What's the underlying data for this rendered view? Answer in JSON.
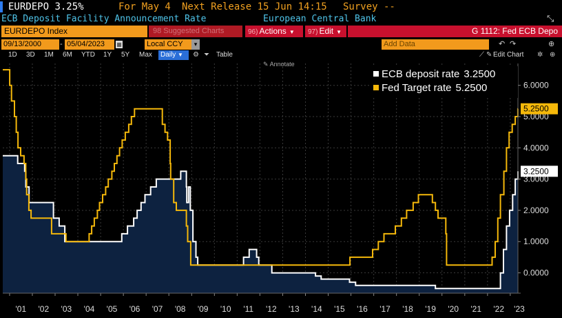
{
  "header": {
    "ticker": "EURDEPO",
    "last_value": "3.25%",
    "for_label": "For May 4",
    "next_release": "Next Release 15 Jun 14:15",
    "survey": "Survey --",
    "title": "ECB Deposit Facility Announcement Rate",
    "source": "European Central Bank"
  },
  "command_bar": {
    "security": "EURDEPO Index",
    "suggested": "98 Suggested Charts",
    "actions_num": "96)",
    "actions_label": "Actions",
    "edit_num": "97)",
    "edit_label": "Edit",
    "chart_name": "G 1112: Fed ECB Depo"
  },
  "range": {
    "start_date": "09/13/2000",
    "end_date": "05/04/2023",
    "currency": "Local CCY",
    "add_data_placeholder": "Add Data"
  },
  "toolbar": {
    "periods": [
      "1D",
      "3D",
      "1M",
      "6M",
      "YTD",
      "1Y",
      "5Y",
      "Max"
    ],
    "frequency": "Daily",
    "table_label": "Table",
    "edit_chart_label": "Edit Chart",
    "annotate_label": "Annotate"
  },
  "colors": {
    "accent_orange": "#f29a1c",
    "command_red": "#c8102e",
    "ecb_line": "#ffffff",
    "fed_line": "#f5b80a",
    "area_fill": "#0d2240",
    "title_blue": "#4fc3e8"
  },
  "icons": [
    "calendar-icon",
    "undo-icon",
    "redo-icon",
    "expand-icon",
    "settings-icon",
    "pin-icon",
    "zoom-icon"
  ],
  "chart_data": {
    "type": "line",
    "x_tick_labels": [
      "'01",
      "'02",
      "'03",
      "'04",
      "'05",
      "'06",
      "'07",
      "'08",
      "'09",
      "'10",
      "'11",
      "'12",
      "'13",
      "'14",
      "'15",
      "'16",
      "'17",
      "'18",
      "'19",
      "'20",
      "'21",
      "'22",
      "'23"
    ],
    "y_tick_labels": [
      "0.0000",
      "1.0000",
      "2.0000",
      "3.0000",
      "4.0000",
      "5.0000",
      "6.0000"
    ],
    "ylim": [
      -0.65,
      6.7
    ],
    "xlim": [
      "2000-09-13",
      "2023-05-04"
    ],
    "grid": true,
    "legend_position": "top-right",
    "last_labels": [
      "5.2500",
      "3.2500"
    ],
    "series": [
      {
        "name": "ECB deposit rate",
        "last_value": "3.2500",
        "color": "#ffffff",
        "area": true,
        "x": [
          "2000-09-13",
          "2001-05-11",
          "2001-08-31",
          "2001-09-18",
          "2001-11-09",
          "2002-12-06",
          "2003-03-07",
          "2003-06-06",
          "2005-12-06",
          "2006-03-08",
          "2006-06-15",
          "2006-08-09",
          "2006-10-11",
          "2006-12-13",
          "2007-03-14",
          "2007-06-13",
          "2008-07-09",
          "2008-10-08",
          "2008-10-15",
          "2008-11-12",
          "2008-12-10",
          "2009-01-21",
          "2009-03-11",
          "2009-04-08",
          "2011-04-13",
          "2011-07-13",
          "2011-11-09",
          "2011-12-14",
          "2012-07-11",
          "2014-06-11",
          "2014-09-10",
          "2015-12-09",
          "2016-03-16",
          "2019-09-18",
          "2022-07-27",
          "2022-09-14",
          "2022-11-02",
          "2022-12-21",
          "2023-02-08",
          "2023-03-22",
          "2023-05-04"
        ],
        "y": [
          3.75,
          3.5,
          3.25,
          2.75,
          2.25,
          1.75,
          1.5,
          1.0,
          1.25,
          1.5,
          1.75,
          2.0,
          2.25,
          2.5,
          2.75,
          3.0,
          3.25,
          2.75,
          2.25,
          2.75,
          2.0,
          1.0,
          0.5,
          0.25,
          0.5,
          0.75,
          0.5,
          0.25,
          0.0,
          -0.1,
          -0.2,
          -0.3,
          -0.4,
          -0.5,
          0.0,
          0.75,
          1.5,
          2.0,
          2.5,
          3.0,
          3.25
        ]
      },
      {
        "name": "Fed Target rate",
        "last_value": "5.2500",
        "color": "#f5b80a",
        "area": false,
        "x": [
          "2000-09-13",
          "2001-01-03",
          "2001-01-31",
          "2001-03-20",
          "2001-04-18",
          "2001-05-15",
          "2001-06-27",
          "2001-08-21",
          "2001-09-17",
          "2001-10-02",
          "2001-11-06",
          "2001-12-11",
          "2002-11-06",
          "2003-06-25",
          "2004-06-30",
          "2004-08-10",
          "2004-09-21",
          "2004-11-10",
          "2004-12-14",
          "2005-02-02",
          "2005-03-22",
          "2005-05-03",
          "2005-06-30",
          "2005-08-09",
          "2005-09-20",
          "2005-11-01",
          "2005-12-13",
          "2006-01-31",
          "2006-03-28",
          "2006-05-10",
          "2006-06-29",
          "2007-09-18",
          "2007-10-31",
          "2007-12-11",
          "2008-01-22",
          "2008-01-30",
          "2008-03-18",
          "2008-04-30",
          "2008-10-08",
          "2008-10-29",
          "2008-12-16",
          "2015-12-16",
          "2016-12-14",
          "2017-03-15",
          "2017-06-14",
          "2017-12-13",
          "2018-03-21",
          "2018-06-13",
          "2018-09-26",
          "2018-12-19",
          "2019-07-31",
          "2019-09-18",
          "2019-10-30",
          "2020-03-03",
          "2020-03-15",
          "2022-03-16",
          "2022-05-04",
          "2022-06-15",
          "2022-07-27",
          "2022-09-21",
          "2022-11-02",
          "2022-12-14",
          "2023-02-01",
          "2023-03-22",
          "2023-05-03",
          "2023-05-04"
        ],
        "y": [
          6.5,
          6.0,
          5.5,
          5.0,
          4.5,
          4.0,
          3.75,
          3.5,
          3.0,
          2.5,
          2.0,
          1.75,
          1.25,
          1.0,
          1.25,
          1.5,
          1.75,
          2.0,
          2.25,
          2.5,
          2.75,
          3.0,
          3.25,
          3.5,
          3.75,
          4.0,
          4.25,
          4.5,
          4.75,
          5.0,
          5.25,
          4.75,
          4.5,
          4.25,
          3.5,
          3.0,
          2.25,
          2.0,
          1.5,
          1.0,
          0.25,
          0.5,
          0.75,
          1.0,
          1.25,
          1.5,
          1.75,
          2.0,
          2.25,
          2.5,
          2.25,
          2.0,
          1.75,
          1.25,
          0.25,
          0.5,
          1.0,
          1.75,
          2.5,
          3.25,
          4.0,
          4.5,
          4.75,
          5.0,
          5.25,
          5.25
        ]
      }
    ]
  }
}
